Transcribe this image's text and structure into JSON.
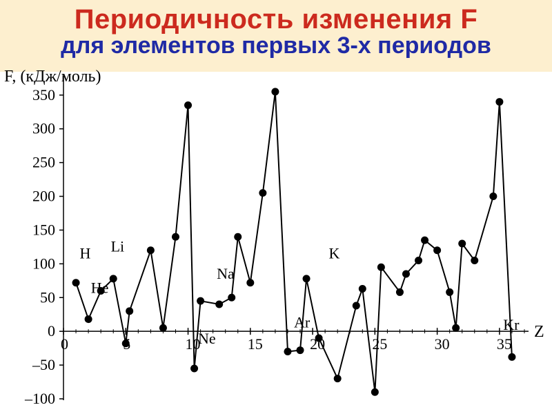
{
  "title": {
    "line1": "Периодичность изменения F",
    "line2": "для элементов первых 3-х периодов",
    "line1_color": "#cc2a1e",
    "line2_color": "#1f2aa5",
    "bg_color": "#fdefcf"
  },
  "chart": {
    "type": "line",
    "bg_color": "#ffffff",
    "line_color": "#000000",
    "marker_color": "#000000",
    "axis_color": "#000000",
    "marker_radius": 5.5,
    "line_width": 2,
    "y": {
      "label": "F, (кДж/моль)",
      "min": -100,
      "max": 360,
      "ticks": [
        -100,
        -50,
        0,
        50,
        100,
        150,
        200,
        250,
        300,
        350
      ],
      "label_fontsize": 24,
      "tick_fontsize": 22
    },
    "x": {
      "label": "Z",
      "min": 0,
      "max": 37,
      "ticks": [
        0,
        5,
        10,
        15,
        20,
        25,
        30,
        35
      ],
      "label_fontsize": 24,
      "tick_fontsize": 22
    },
    "data": [
      {
        "z": 1,
        "f": 72
      },
      {
        "z": 2,
        "f": 18
      },
      {
        "z": 3,
        "f": 60
      },
      {
        "z": 4,
        "f": 78
      },
      {
        "z": 5,
        "f": -18
      },
      {
        "z": 5.3,
        "f": 30
      },
      {
        "z": 7,
        "f": 120
      },
      {
        "z": 8,
        "f": 5
      },
      {
        "z": 9,
        "f": 140
      },
      {
        "z": 10,
        "f": 335
      },
      {
        "z": 10.5,
        "f": -55
      },
      {
        "z": 11,
        "f": 45
      },
      {
        "z": 12.5,
        "f": 40
      },
      {
        "z": 13.5,
        "f": 50
      },
      {
        "z": 14,
        "f": 140
      },
      {
        "z": 15,
        "f": 72
      },
      {
        "z": 16,
        "f": 205
      },
      {
        "z": 17,
        "f": 355
      },
      {
        "z": 18,
        "f": -30
      },
      {
        "z": 19,
        "f": -28
      },
      {
        "z": 19.5,
        "f": 78
      },
      {
        "z": 20.5,
        "f": -10
      },
      {
        "z": 22,
        "f": -70
      },
      {
        "z": 23.5,
        "f": 38
      },
      {
        "z": 24,
        "f": 63
      },
      {
        "z": 25,
        "f": -90
      },
      {
        "z": 25.5,
        "f": 95
      },
      {
        "z": 27,
        "f": 58
      },
      {
        "z": 27.5,
        "f": 85
      },
      {
        "z": 28.5,
        "f": 105
      },
      {
        "z": 29,
        "f": 135
      },
      {
        "z": 30,
        "f": 120
      },
      {
        "z": 31,
        "f": 58
      },
      {
        "z": 31.5,
        "f": 5
      },
      {
        "z": 32,
        "f": 130
      },
      {
        "z": 33,
        "f": 105
      },
      {
        "z": 34.5,
        "f": 200
      },
      {
        "z": 35,
        "f": 340
      },
      {
        "z": 36,
        "f": -38
      }
    ],
    "element_labels": [
      {
        "text": "H",
        "z": 1.3,
        "f": 108
      },
      {
        "text": "He",
        "z": 2.2,
        "f": 57
      },
      {
        "text": "Li",
        "z": 3.8,
        "f": 118
      },
      {
        "text": "Ne",
        "z": 10.8,
        "f": -18
      },
      {
        "text": "Na",
        "z": 12.3,
        "f": 78
      },
      {
        "text": "Ar",
        "z": 18.5,
        "f": 6
      },
      {
        "text": "K",
        "z": 21.3,
        "f": 108
      },
      {
        "text": "Kr",
        "z": 35.3,
        "f": 2
      }
    ]
  }
}
